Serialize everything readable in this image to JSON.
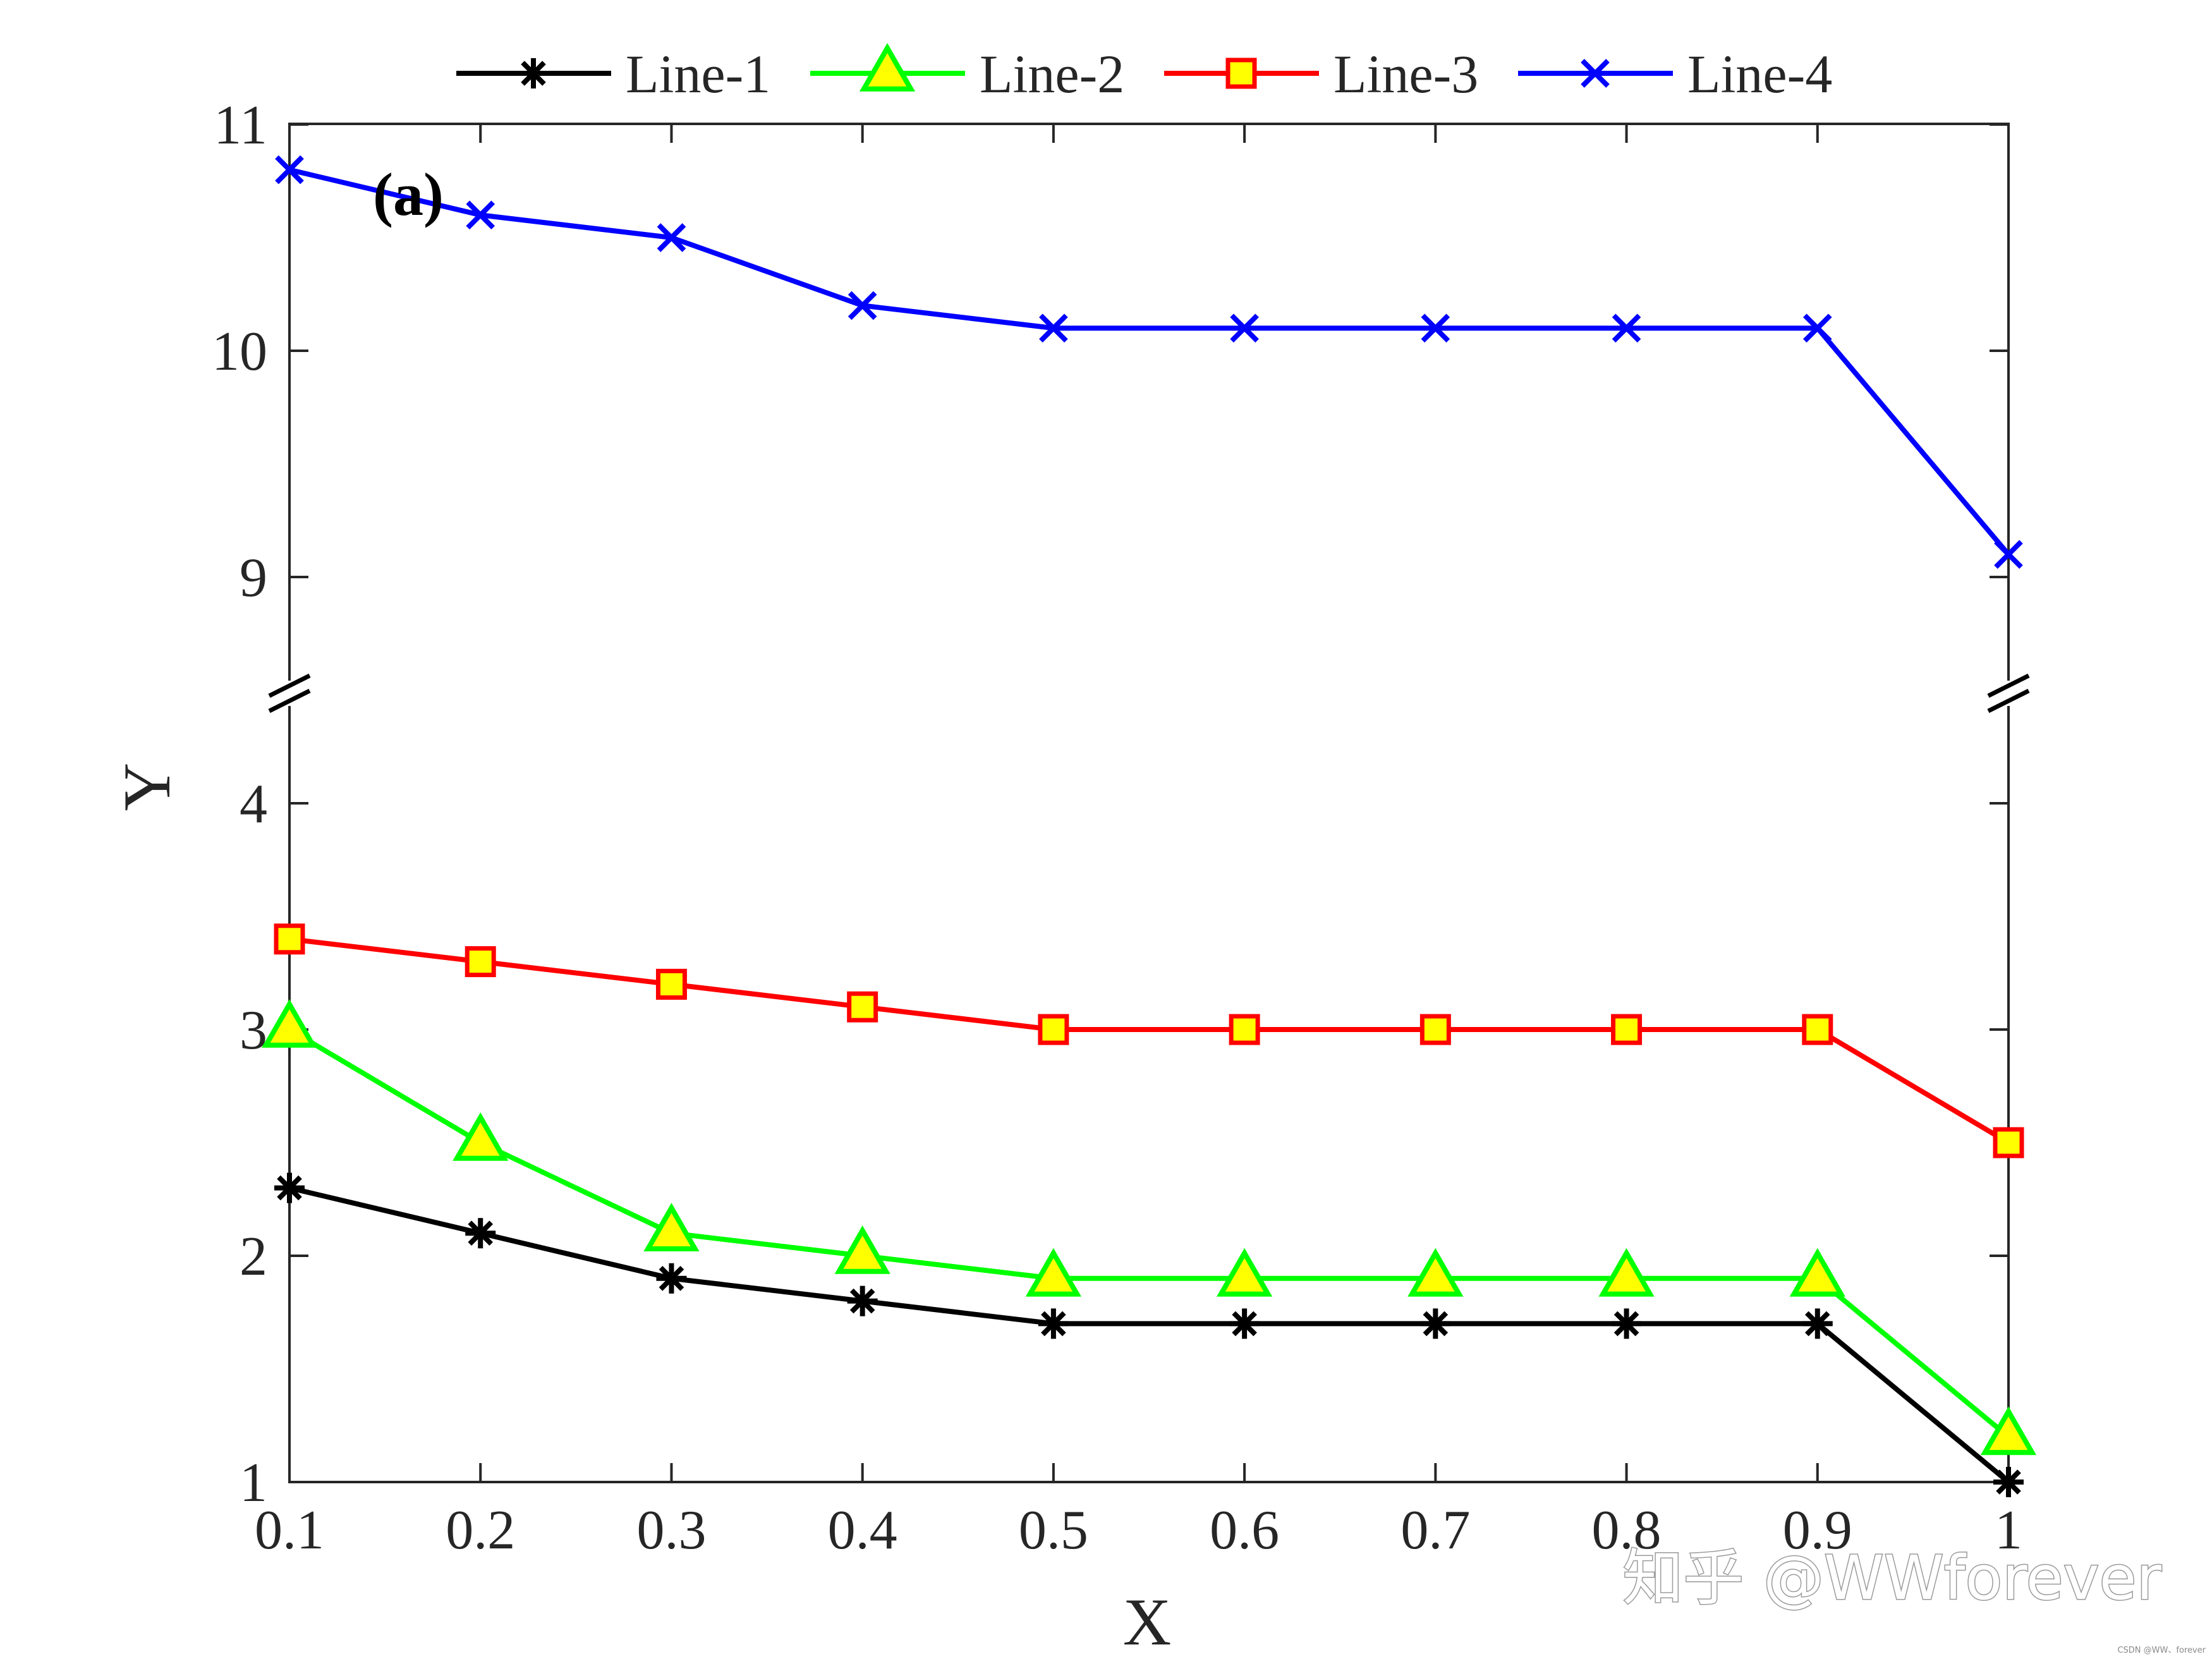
{
  "chart_data": {
    "type": "line",
    "title": "",
    "panel_label": "(a)",
    "xlabel": "X",
    "ylabel": "Y",
    "x": [
      0.1,
      0.2,
      0.3,
      0.4,
      0.5,
      0.6,
      0.7,
      0.8,
      0.9,
      1.0
    ],
    "xlim": [
      0.1,
      1.0
    ],
    "xticks": [
      "0.1",
      "0.2",
      "0.3",
      "0.4",
      "0.5",
      "0.6",
      "0.7",
      "0.8",
      "0.9",
      "1"
    ],
    "ylim": [
      1,
      11
    ],
    "y_axis_break": [
      4.5,
      8.5
    ],
    "yticks": [
      "1",
      "2",
      "3",
      "4",
      "9",
      "10",
      "11"
    ],
    "grid": false,
    "legend_position": "top-outside",
    "series": [
      {
        "name": "Line-1",
        "color": "#000000",
        "marker": "asterisk",
        "values": [
          2.3,
          2.1,
          1.9,
          1.8,
          1.7,
          1.7,
          1.7,
          1.7,
          1.7,
          1.0
        ]
      },
      {
        "name": "Line-2",
        "color": "#00ff00",
        "marker_fill": "#ffff00",
        "marker": "triangle",
        "values": [
          3.0,
          2.5,
          2.1,
          2.0,
          1.9,
          1.9,
          1.9,
          1.9,
          1.9,
          1.2
        ]
      },
      {
        "name": "Line-3",
        "color": "#ff0000",
        "marker_fill": "#ffff00",
        "marker": "square",
        "values": [
          3.4,
          3.3,
          3.2,
          3.1,
          3.0,
          3.0,
          3.0,
          3.0,
          3.0,
          2.5
        ]
      },
      {
        "name": "Line-4",
        "color": "#0000ff",
        "marker": "x",
        "values": [
          10.8,
          10.6,
          10.5,
          10.2,
          10.1,
          10.1,
          10.1,
          10.1,
          10.1,
          9.1
        ]
      }
    ]
  },
  "watermark": {
    "main": "知乎 @WWforever",
    "small": "CSDN @WW、forever"
  }
}
